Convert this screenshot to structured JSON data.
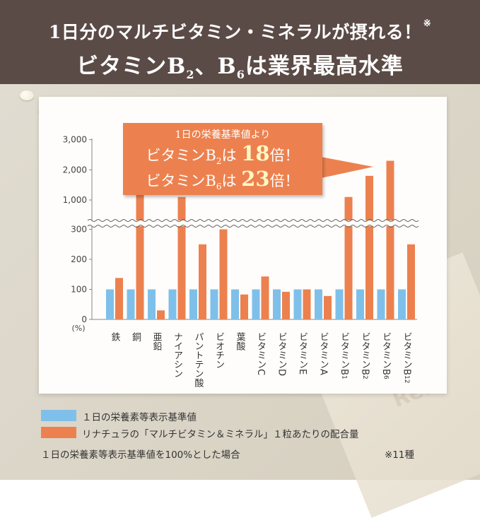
{
  "header": {
    "line1": "1日分のマルチビタミン・ミネラルが摂れる！",
    "line1_mark": "※",
    "line2_a": "ビタミンB",
    "line2_sub1": "2",
    "line2_b": "、B",
    "line2_sub2": "6",
    "line2_c": "は業界最高水準"
  },
  "callout": {
    "line1": "1日の栄養基準値より",
    "b2_prefix": "ビタミンB",
    "b2_sub": "2",
    "b2_mid": "は",
    "b2_value": "18",
    "b2_suffix": "倍！",
    "b6_prefix": "ビタミンB",
    "b6_sub": "6",
    "b6_mid": "は",
    "b6_value": "23",
    "b6_suffix": "倍！"
  },
  "legend": {
    "standard": "１日の栄養素等表示基準値",
    "product": "リナチュラの「マルチビタミン＆ミネラル」１粒あたりの配合量"
  },
  "footnote": "１日の栄養素等表示基準値を100%とした場合",
  "count_note": "※11種",
  "package_text": "Re.",
  "colors": {
    "header_bg": "#5b4b46",
    "standard": "#7fc0ea",
    "product": "#ec814f",
    "callout": "#ec814f"
  },
  "chart_data": {
    "type": "bar",
    "title": "",
    "ylabel": "(%)",
    "xlabel": "",
    "axis_break": {
      "lower_max": 300,
      "upper_min": 1000
    },
    "yticks": [
      "0",
      "100",
      "200",
      "300",
      "1,000",
      "2,000",
      "3,000"
    ],
    "categories": [
      "鉄",
      "銅",
      "亜鉛",
      "ナイアシン",
      "パントテン酸",
      "ビオチン",
      "葉酸",
      "ビタミンC",
      "ビタミンD",
      "ビタミンE",
      "ビタミンA",
      "ビタミンB1",
      "ビタミンB2",
      "ビタミンB6",
      "ビタミンB12"
    ],
    "category_labels": [
      {
        "text": "鉄",
        "sub": ""
      },
      {
        "text": "銅",
        "sub": ""
      },
      {
        "text": "亜鉛",
        "sub": ""
      },
      {
        "text": "ナイアシン",
        "sub": ""
      },
      {
        "text": "パントテン酸",
        "sub": ""
      },
      {
        "text": "ビオチン",
        "sub": ""
      },
      {
        "text": "葉酸",
        "sub": ""
      },
      {
        "text": "ビタミンC",
        "sub": ""
      },
      {
        "text": "ビタミンD",
        "sub": ""
      },
      {
        "text": "ビタミンE",
        "sub": ""
      },
      {
        "text": "ビタミンA",
        "sub": ""
      },
      {
        "text": "ビタミンB",
        "sub": "1"
      },
      {
        "text": "ビタミンB",
        "sub": "2"
      },
      {
        "text": "ビタミンB",
        "sub": "6"
      },
      {
        "text": "ビタミンB",
        "sub": "12"
      }
    ],
    "series": [
      {
        "name": "１日の栄養素等表示基準値",
        "values": [
          100,
          100,
          100,
          100,
          100,
          100,
          100,
          100,
          100,
          100,
          100,
          100,
          100,
          100,
          100
        ]
      },
      {
        "name": "リナチュラの「マルチビタミン＆ミネラル」１粒あたりの配合量",
        "values": [
          138,
          1400,
          30,
          1100,
          250,
          300,
          83,
          143,
          92,
          100,
          78,
          1100,
          1800,
          2300,
          250
        ]
      }
    ]
  }
}
